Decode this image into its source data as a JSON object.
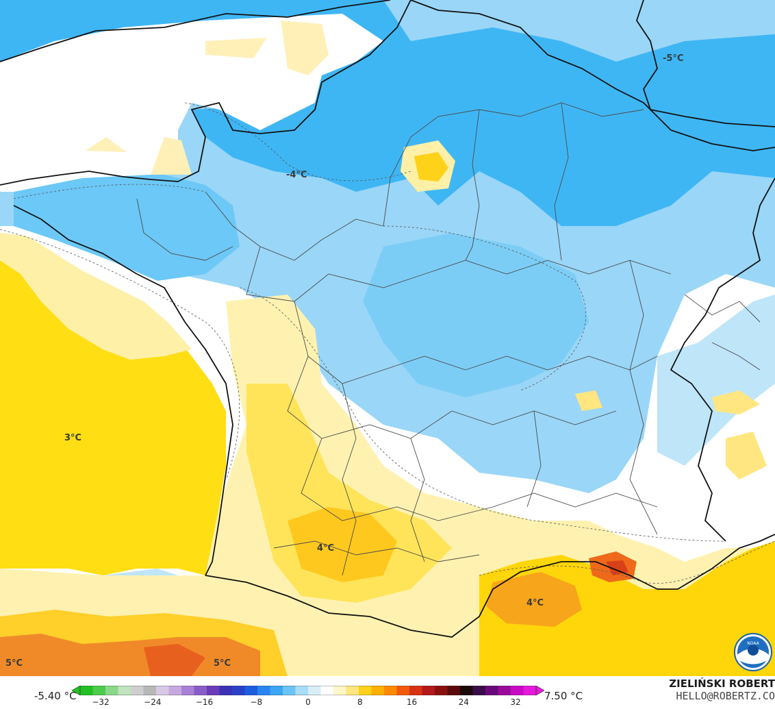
{
  "map": {
    "labels": [
      {
        "text": "-4°C"
      },
      {
        "text": "-5°C"
      },
      {
        "text": "3°C"
      },
      {
        "text": "4°C"
      },
      {
        "text": "4°C"
      },
      {
        "text": "5°C"
      },
      {
        "text": "5°C"
      }
    ]
  },
  "legend": {
    "min_text": "-5.40 °C",
    "max_text": "7.50 °C",
    "ticks": [
      "−32",
      "−24",
      "−16",
      "−8",
      "0",
      "8",
      "16",
      "24",
      "32"
    ],
    "colors": [
      "#22c022",
      "#4ccc4c",
      "#8ad88a",
      "#bfe4bf",
      "#cfcfcf",
      "#b8b8b8",
      "#d8c8e6",
      "#c6a8e0",
      "#a980d6",
      "#8a5cc8",
      "#6a3cb8",
      "#3b32b6",
      "#2a40c8",
      "#1e5ce0",
      "#2a84f0",
      "#3aa6f4",
      "#6cc4f6",
      "#a8dcf8",
      "#d8eefa",
      "#ffffff",
      "#fff6c8",
      "#ffe680",
      "#ffd21a",
      "#ffb000",
      "#ff8a00",
      "#f05a0a",
      "#d83212",
      "#b41818",
      "#8a1010",
      "#5a0a0a",
      "#1a0a0a",
      "#3a0c4a",
      "#6a0a7a",
      "#9a0a9a",
      "#c80ac4",
      "#e618dc"
    ],
    "value_min": -32,
    "value_max": 32
  },
  "credit": {
    "name": "ZIELIŃSKI ROBERT",
    "email": "HELLO@ROBERTZ.CO",
    "logo_text": "NOAA"
  },
  "palette": {
    "ocean_atlantic": "#ffdc0a",
    "ocean_med": "#ffd60a",
    "cold_deep": "#29b0f2",
    "cold_mid": "#6cc8f6",
    "cold_light": "#b9e3f9",
    "neutral": "#ffffff",
    "warm_light": "#fff2b0",
    "warm_mid": "#ffe04a",
    "warm_deep": "#ffc81e",
    "warm_orange": "#f7a01a",
    "hot": "#e8501a",
    "coast": "#111111",
    "border": "#444444"
  }
}
